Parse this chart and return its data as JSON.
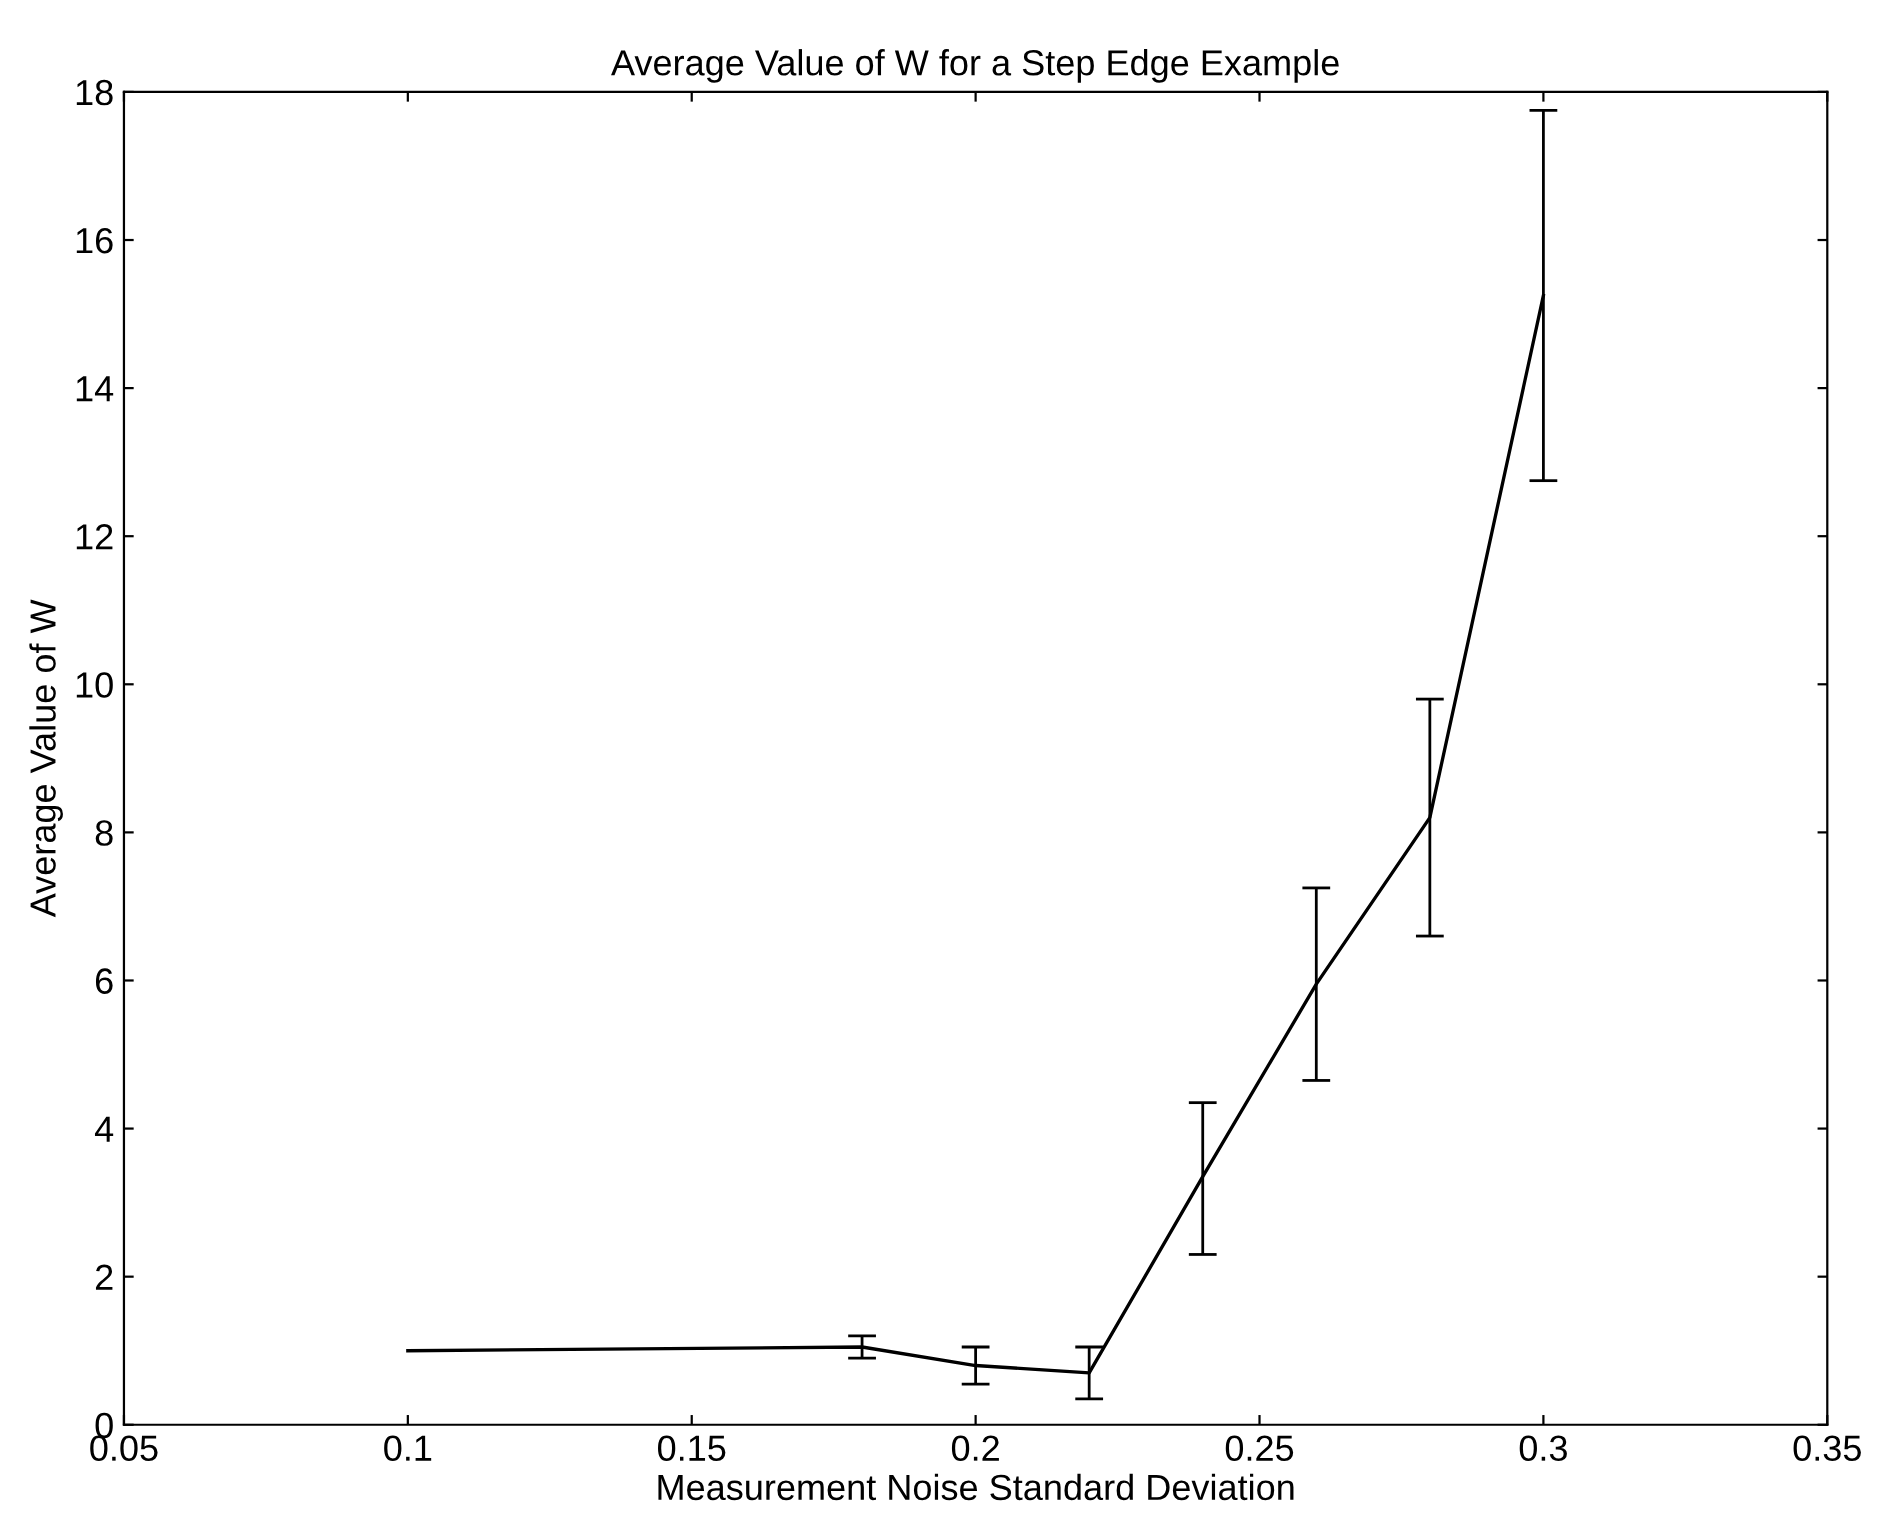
{
  "chart_data": {
    "type": "line",
    "title": "Average Value of W for a Step Edge Example",
    "xlabel": "Measurement Noise Standard Deviation",
    "ylabel": "Average Value of W",
    "x": [
      0.1,
      0.18,
      0.2,
      0.22,
      0.24,
      0.26,
      0.28,
      0.3
    ],
    "series": [
      {
        "color": "#000000",
        "values": [
          1.0,
          1.05,
          0.8,
          0.7,
          3.35,
          5.95,
          8.2,
          15.25
        ],
        "errors": [
          null,
          [
            0.9,
            1.2
          ],
          [
            0.55,
            1.05
          ],
          [
            0.35,
            1.05
          ],
          [
            2.3,
            4.35
          ],
          [
            4.65,
            7.25
          ],
          [
            6.6,
            9.8
          ],
          [
            12.75,
            17.75
          ]
        ]
      }
    ],
    "xlim": [
      0.05,
      0.35
    ],
    "xticks": [
      0.05,
      0.1,
      0.15,
      0.2,
      0.25,
      0.3,
      0.35
    ],
    "ylim": [
      0,
      18
    ],
    "yticks": [
      0,
      2,
      4,
      6,
      8,
      10,
      12,
      14,
      16,
      18
    ],
    "grid": false,
    "marker": "none",
    "line_style": "solid"
  }
}
